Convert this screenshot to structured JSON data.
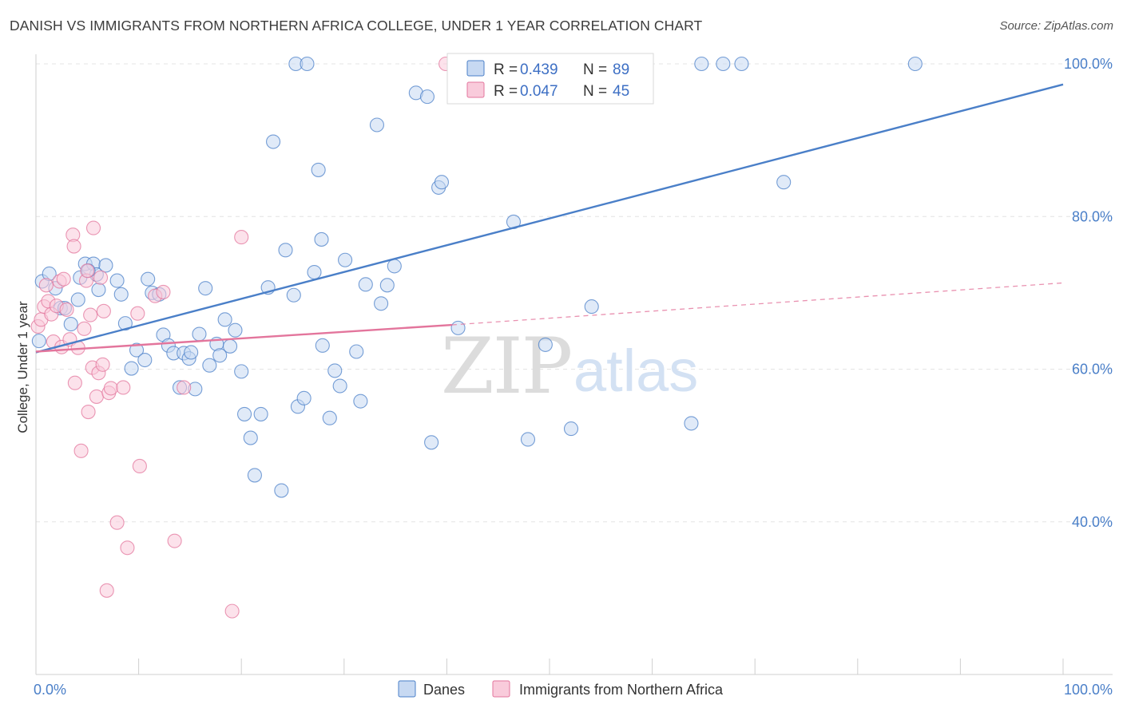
{
  "title": "DANISH VS IMMIGRANTS FROM NORTHERN AFRICA COLLEGE, UNDER 1 YEAR CORRELATION CHART",
  "source": "Source: ZipAtlas.com",
  "watermark": {
    "zip": "ZIP",
    "atlas": "atlas"
  },
  "legend_top": {
    "rows": [
      {
        "r_label": "R = ",
        "r_value": "0.439",
        "n_label": "N = ",
        "n_value": "89",
        "color": "#4a7fc8"
      },
      {
        "r_label": "R = ",
        "r_value": "0.047",
        "n_label": "N = ",
        "n_value": "45",
        "color": "#e3759c"
      }
    ]
  },
  "legend_bottom": [
    {
      "label": "Danes",
      "color": "#4a7fc8"
    },
    {
      "label": "Immigrants from Northern Africa",
      "color": "#e3759c"
    }
  ],
  "chart_data": {
    "type": "scatter",
    "title": "DANISH VS IMMIGRANTS FROM NORTHERN AFRICA COLLEGE, UNDER 1 YEAR CORRELATION CHART",
    "xlabel": "",
    "ylabel": "College, Under 1 year",
    "xlim": [
      0,
      100
    ],
    "ylim": [
      20,
      100
    ],
    "x_tick_labels": [
      "0.0%",
      "100.0%"
    ],
    "y_tick_labels": [
      "40.0%",
      "60.0%",
      "80.0%",
      "100.0%"
    ],
    "y_tick_values": [
      40,
      60,
      80,
      100
    ],
    "grid": true,
    "legend_placement": "top-center",
    "series": [
      {
        "name": "Danes",
        "color": "#4a7fc8",
        "R": 0.439,
        "N": 89,
        "trend": {
          "x0": 0,
          "y0": 62.2,
          "x1": 100,
          "y1": 97.3,
          "style": "solid"
        },
        "points": [
          [
            0.3,
            63.7
          ],
          [
            0.6,
            71.5
          ],
          [
            1.3,
            72.5
          ],
          [
            1.9,
            70.6
          ],
          [
            2.4,
            68.0
          ],
          [
            2.8,
            68.0
          ],
          [
            3.4,
            65.9
          ],
          [
            4.1,
            69.1
          ],
          [
            4.3,
            72.0
          ],
          [
            4.8,
            73.8
          ],
          [
            5.6,
            73.8
          ],
          [
            5.9,
            72.4
          ],
          [
            6.1,
            70.4
          ],
          [
            6.8,
            73.6
          ],
          [
            7.9,
            71.6
          ],
          [
            8.3,
            69.8
          ],
          [
            8.7,
            66.0
          ],
          [
            9.3,
            60.1
          ],
          [
            9.8,
            62.5
          ],
          [
            10.6,
            61.2
          ],
          [
            10.9,
            71.8
          ],
          [
            11.3,
            70.0
          ],
          [
            12.0,
            69.8
          ],
          [
            12.4,
            64.5
          ],
          [
            12.9,
            63.1
          ],
          [
            13.4,
            62.1
          ],
          [
            14.0,
            57.6
          ],
          [
            14.4,
            62.1
          ],
          [
            14.9,
            61.4
          ],
          [
            15.5,
            57.4
          ],
          [
            15.9,
            64.6
          ],
          [
            16.5,
            70.6
          ],
          [
            16.9,
            60.5
          ],
          [
            17.6,
            63.3
          ],
          [
            17.9,
            61.8
          ],
          [
            18.4,
            66.5
          ],
          [
            18.9,
            63.0
          ],
          [
            19.4,
            65.1
          ],
          [
            20.0,
            59.7
          ],
          [
            20.3,
            54.1
          ],
          [
            20.9,
            51.0
          ],
          [
            21.3,
            46.1
          ],
          [
            21.9,
            54.1
          ],
          [
            22.6,
            70.7
          ],
          [
            23.1,
            89.8
          ],
          [
            23.9,
            44.1
          ],
          [
            24.3,
            75.6
          ],
          [
            25.1,
            69.7
          ],
          [
            25.5,
            55.1
          ],
          [
            26.1,
            56.2
          ],
          [
            27.1,
            72.7
          ],
          [
            27.5,
            86.1
          ],
          [
            27.8,
            77.0
          ],
          [
            28.6,
            53.6
          ],
          [
            29.1,
            59.8
          ],
          [
            29.6,
            57.8
          ],
          [
            30.1,
            74.3
          ],
          [
            31.2,
            62.3
          ],
          [
            31.6,
            55.8
          ],
          [
            32.1,
            71.1
          ],
          [
            33.2,
            92.0
          ],
          [
            33.6,
            68.6
          ],
          [
            34.2,
            71.0
          ],
          [
            34.9,
            73.5
          ],
          [
            37.0,
            96.2
          ],
          [
            38.1,
            95.7
          ],
          [
            38.5,
            50.4
          ],
          [
            39.2,
            83.8
          ],
          [
            39.5,
            84.5
          ],
          [
            41.1,
            65.4
          ],
          [
            46.5,
            79.3
          ],
          [
            47.9,
            50.8
          ],
          [
            49.6,
            63.2
          ],
          [
            52.1,
            52.2
          ],
          [
            54.1,
            68.2
          ],
          [
            63.8,
            52.9
          ],
          [
            72.8,
            84.5
          ],
          [
            25.3,
            100.0
          ],
          [
            26.4,
            100.0
          ],
          [
            42.4,
            100.0
          ],
          [
            45.4,
            100.0
          ],
          [
            58.4,
            100.0
          ],
          [
            64.8,
            100.0
          ],
          [
            66.9,
            100.0
          ],
          [
            68.7,
            100.0
          ],
          [
            85.6,
            100.0
          ],
          [
            5.1,
            72.9
          ],
          [
            15.1,
            62.2
          ],
          [
            27.9,
            63.1
          ]
        ]
      },
      {
        "name": "Immigrants from Northern Africa",
        "color": "#e3759c",
        "R": 0.047,
        "N": 45,
        "trend": {
          "x0": 0,
          "y0": 62.3,
          "x1": 40.5,
          "y1": 65.8,
          "style": "solid",
          "extension": {
            "x0": 40.5,
            "y0": 65.8,
            "x1": 100,
            "y1": 71.3,
            "style": "dashed"
          }
        },
        "points": [
          [
            0.2,
            65.6
          ],
          [
            0.5,
            66.5
          ],
          [
            0.8,
            68.2
          ],
          [
            1.0,
            71.0
          ],
          [
            1.2,
            68.9
          ],
          [
            1.5,
            67.2
          ],
          [
            1.7,
            63.6
          ],
          [
            2.0,
            68.3
          ],
          [
            2.3,
            71.5
          ],
          [
            2.5,
            62.9
          ],
          [
            2.7,
            71.8
          ],
          [
            3.0,
            67.8
          ],
          [
            3.3,
            63.9
          ],
          [
            3.6,
            77.6
          ],
          [
            3.7,
            76.1
          ],
          [
            3.8,
            58.2
          ],
          [
            4.1,
            62.8
          ],
          [
            4.4,
            49.3
          ],
          [
            4.7,
            65.3
          ],
          [
            4.9,
            71.6
          ],
          [
            5.0,
            72.9
          ],
          [
            5.1,
            54.4
          ],
          [
            5.3,
            67.1
          ],
          [
            5.5,
            60.2
          ],
          [
            5.6,
            78.5
          ],
          [
            5.9,
            56.4
          ],
          [
            6.1,
            59.5
          ],
          [
            6.3,
            72.0
          ],
          [
            6.5,
            60.6
          ],
          [
            6.6,
            67.6
          ],
          [
            6.9,
            31.0
          ],
          [
            7.1,
            56.9
          ],
          [
            7.3,
            57.5
          ],
          [
            7.9,
            39.9
          ],
          [
            8.5,
            57.6
          ],
          [
            8.9,
            36.6
          ],
          [
            9.9,
            67.3
          ],
          [
            10.1,
            47.3
          ],
          [
            11.6,
            69.6
          ],
          [
            12.4,
            70.1
          ],
          [
            13.5,
            37.5
          ],
          [
            14.4,
            57.6
          ],
          [
            19.1,
            28.3
          ],
          [
            20.0,
            77.3
          ],
          [
            39.9,
            100.0
          ]
        ]
      }
    ]
  }
}
